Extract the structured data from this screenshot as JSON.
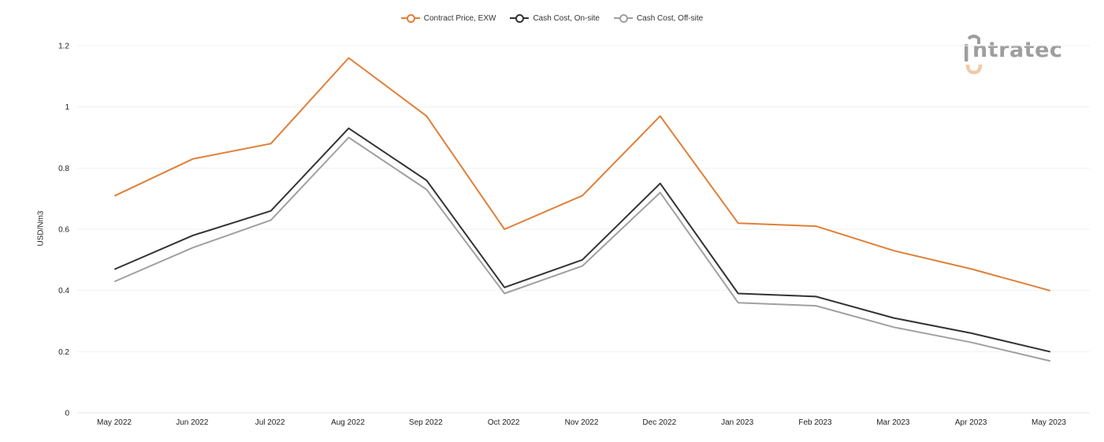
{
  "brand": {
    "logo_text": "ntratec",
    "colors": {
      "logo_gray": "#9e9e9e",
      "logo_peach": "#f2c9a8"
    }
  },
  "chart_data": {
    "type": "line",
    "title": "",
    "xlabel": "",
    "ylabel": "USD/Nm3",
    "categories": [
      "May 2022",
      "Jun 2022",
      "Jul 2022",
      "Aug 2022",
      "Sep 2022",
      "Oct 2022",
      "Nov 2022",
      "Dec 2022",
      "Jan 2023",
      "Feb 2023",
      "Mar 2023",
      "Apr 2023",
      "May 2023"
    ],
    "ylim": [
      0,
      1.2
    ],
    "yticks": [
      0,
      0.2,
      0.4,
      0.6,
      0.8,
      1,
      1.2
    ],
    "ytick_labels": [
      "0",
      "0.2",
      "0.4",
      "0.6",
      "0.8",
      "1",
      "1.2"
    ],
    "grid": "horizontal",
    "legend_position": "top-center",
    "series": [
      {
        "name": "Contract Price, EXW",
        "color": "#e07f38",
        "values": [
          0.71,
          0.83,
          0.88,
          1.16,
          0.97,
          0.6,
          0.71,
          0.97,
          0.62,
          0.61,
          0.53,
          0.47,
          0.4
        ]
      },
      {
        "name": "Cash Cost, On-site",
        "color": "#333333",
        "values": [
          0.47,
          0.58,
          0.66,
          0.93,
          0.76,
          0.41,
          0.5,
          0.75,
          0.39,
          0.38,
          0.31,
          0.26,
          0.2
        ]
      },
      {
        "name": "Cash Cost, Off-site",
        "color": "#a0a0a0",
        "values": [
          0.43,
          0.54,
          0.63,
          0.9,
          0.73,
          0.39,
          0.48,
          0.72,
          0.36,
          0.35,
          0.28,
          0.23,
          0.17
        ]
      }
    ]
  }
}
